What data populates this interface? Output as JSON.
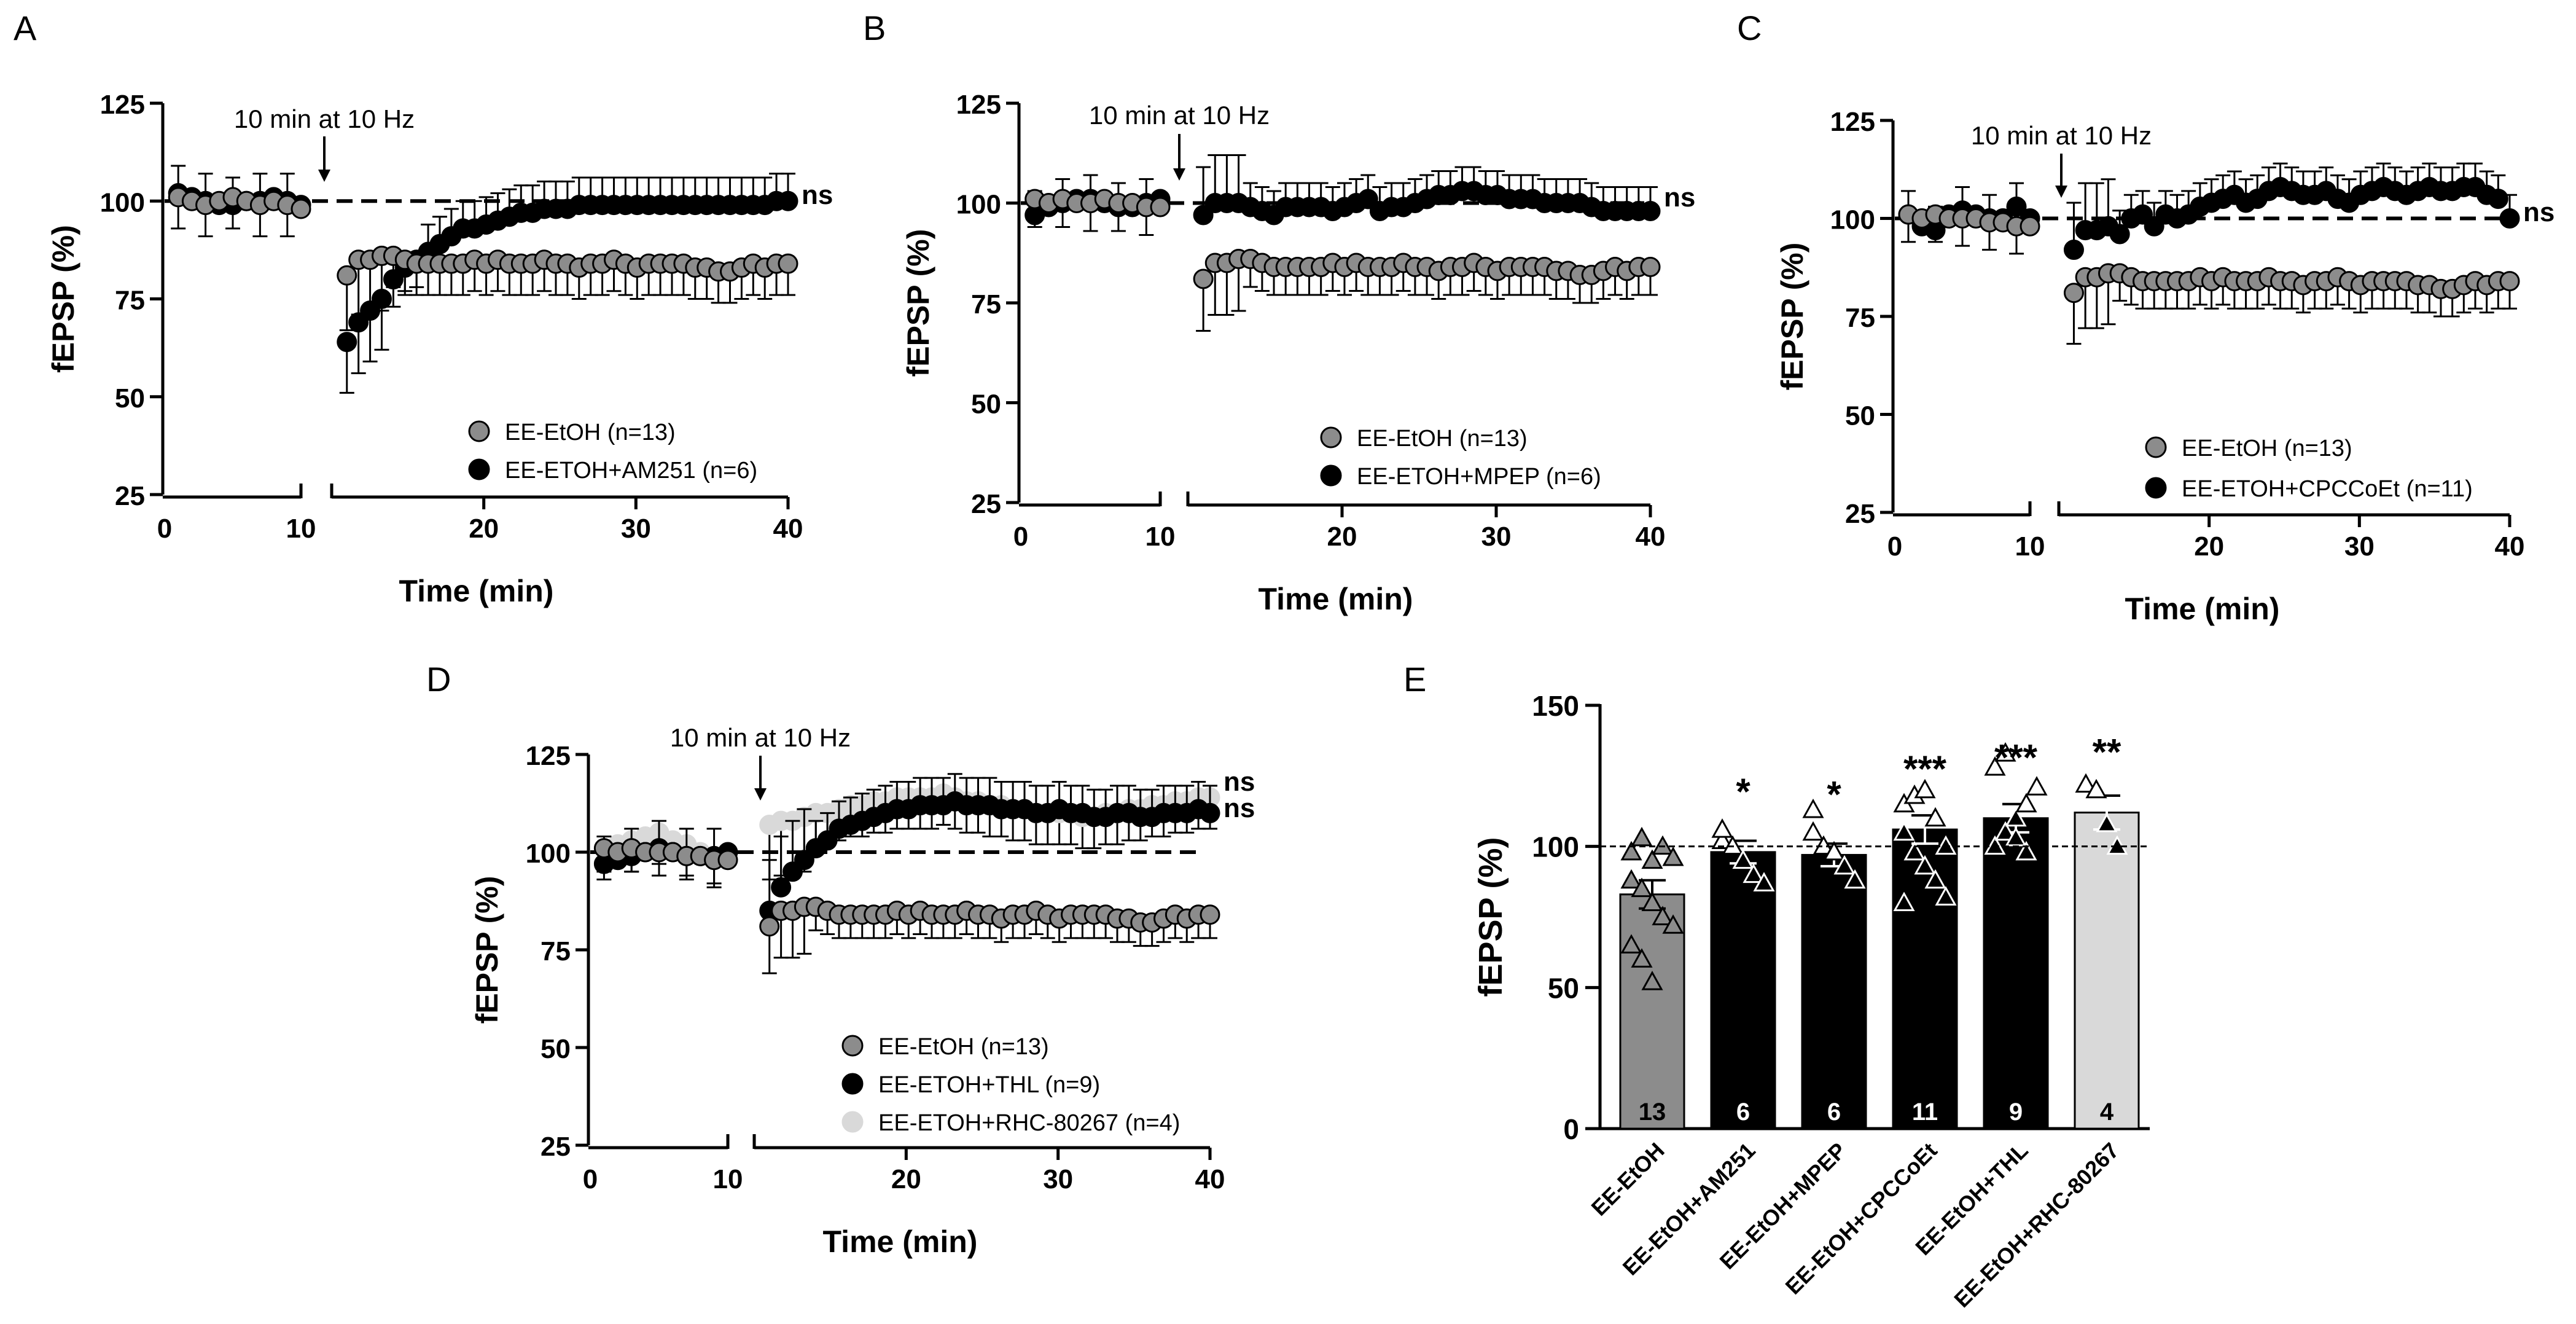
{
  "figure": {
    "colors": {
      "ethanol": "#8c8c8c",
      "black": "#000000",
      "light": "#d9d9d9"
    }
  },
  "chart_data": [
    {
      "panel": "A",
      "type": "scatter",
      "xlabel": "Time (min)",
      "ylabel": "fEPSP (%)",
      "xlim": [
        0,
        40
      ],
      "ylim": [
        25,
        125
      ],
      "xticks": [
        "0",
        "10",
        "20",
        "30",
        "40"
      ],
      "yticks": [
        "25",
        "50",
        "75",
        "100",
        "125"
      ],
      "annotation": "10 min at 10 Hz",
      "stim_x": 10,
      "sig_labels": [
        "ns"
      ],
      "reference_line": 100,
      "series": [
        {
          "name": "EE-EtOH (n=13)",
          "color": "#8c8c8c",
          "baseline": [
            101,
            100,
            99,
            100,
            101,
            100,
            99,
            100,
            99,
            98
          ],
          "post": [
            81,
            85,
            85,
            86,
            86,
            85,
            84,
            84,
            84,
            84,
            84,
            85,
            84,
            85,
            84,
            84,
            84,
            85,
            84,
            84,
            83,
            84,
            84,
            85,
            84,
            83,
            84,
            84,
            84,
            84,
            83,
            83,
            82,
            82,
            83,
            84,
            83,
            84,
            84
          ],
          "err": 8
        },
        {
          "name": "EE-ETOH+AM251 (n=6)",
          "color": "#000000",
          "baseline": [
            102,
            101,
            100,
            99,
            99,
            100,
            100,
            101,
            100,
            99
          ],
          "post": [
            64,
            69,
            72,
            75,
            80,
            83,
            85,
            87,
            89,
            91,
            93,
            93,
            94,
            95,
            96,
            97,
            97,
            98,
            98,
            98,
            99,
            99,
            99,
            99,
            99,
            99,
            99,
            99,
            99,
            99,
            99,
            99,
            99,
            99,
            99,
            99,
            99,
            100,
            100
          ],
          "err": 7
        }
      ]
    },
    {
      "panel": "B",
      "type": "scatter",
      "xlabel": "Time (min)",
      "ylabel": "fEPSP (%)",
      "xlim": [
        0,
        40
      ],
      "ylim": [
        25,
        125
      ],
      "xticks": [
        "0",
        "10",
        "20",
        "30",
        "40"
      ],
      "yticks": [
        "25",
        "50",
        "75",
        "100",
        "125"
      ],
      "annotation": "10 min at 10 Hz",
      "stim_x": 10,
      "sig_labels": [
        "ns"
      ],
      "reference_line": 100,
      "series": [
        {
          "name": "EE-EtOH (n=13)",
          "color": "#8c8c8c",
          "baseline": [
            101,
            100,
            101,
            100,
            100,
            101,
            100,
            100,
            99,
            99
          ],
          "post": [
            81,
            85,
            85,
            86,
            86,
            85,
            84,
            84,
            84,
            84,
            84,
            85,
            84,
            85,
            84,
            84,
            84,
            85,
            84,
            84,
            83,
            84,
            84,
            85,
            84,
            83,
            84,
            84,
            84,
            84,
            83,
            83,
            82,
            82,
            83,
            84,
            83,
            84,
            84
          ],
          "err": 7
        },
        {
          "name": "EE-ETOH+MPEP (n=6)",
          "color": "#000000",
          "baseline": [
            97,
            99,
            100,
            101,
            101,
            100,
            99,
            99,
            100,
            101
          ],
          "post": [
            97,
            100,
            100,
            100,
            99,
            98,
            97,
            99,
            99,
            99,
            99,
            98,
            99,
            100,
            101,
            98,
            99,
            99,
            100,
            101,
            102,
            102,
            103,
            103,
            102,
            102,
            101,
            101,
            101,
            100,
            100,
            100,
            100,
            99,
            98,
            98,
            98,
            98,
            98
          ],
          "err": 6
        }
      ]
    },
    {
      "panel": "C",
      "type": "scatter",
      "xlabel": "Time (min)",
      "ylabel": "fEPSP (%)",
      "xlim": [
        0,
        40
      ],
      "ylim": [
        25,
        125
      ],
      "xticks": [
        "0",
        "10",
        "20",
        "30",
        "40"
      ],
      "yticks": [
        "25",
        "50",
        "75",
        "100",
        "125"
      ],
      "annotation": "10 min at 10 Hz",
      "stim_x": 10,
      "sig_labels": [
        "ns"
      ],
      "reference_line": 100,
      "series": [
        {
          "name": "EE-EtOH (n=13)",
          "color": "#8c8c8c",
          "baseline": [
            101,
            100,
            101,
            100,
            100,
            100,
            99,
            99,
            98,
            98
          ],
          "post": [
            81,
            85,
            85,
            86,
            86,
            85,
            84,
            84,
            84,
            84,
            84,
            85,
            84,
            85,
            84,
            84,
            84,
            85,
            84,
            84,
            83,
            84,
            84,
            85,
            84,
            83,
            84,
            84,
            84,
            84,
            83,
            83,
            82,
            82,
            83,
            84,
            83,
            84,
            84
          ],
          "err": 7
        },
        {
          "name": "EE-ETOH+CPCCoEt (n=11)",
          "color": "#000000",
          "baseline": [
            101,
            98,
            97,
            101,
            102,
            101,
            100,
            100,
            103,
            100
          ],
          "post": [
            92,
            97,
            97,
            98,
            96,
            100,
            101,
            98,
            101,
            100,
            101,
            103,
            104,
            105,
            106,
            104,
            105,
            107,
            108,
            107,
            106,
            106,
            107,
            105,
            104,
            106,
            107,
            108,
            107,
            106,
            107,
            108,
            107,
            107,
            108,
            108,
            106,
            105,
            100
          ],
          "err": 6
        }
      ]
    },
    {
      "panel": "D",
      "type": "scatter",
      "xlabel": "Time (min)",
      "ylabel": "fEPSP (%)",
      "xlim": [
        0,
        40
      ],
      "ylim": [
        25,
        125
      ],
      "xticks": [
        "0",
        "10",
        "20",
        "30",
        "40"
      ],
      "yticks": [
        "25",
        "50",
        "75",
        "100",
        "125"
      ],
      "annotation": "10 min at 10 Hz",
      "stim_x": 10,
      "sig_labels": [
        "ns",
        "ns"
      ],
      "reference_line": 100,
      "series": [
        {
          "name": "EE-EtOH (n=13)",
          "color": "#8c8c8c",
          "baseline": [
            101,
            100,
            101,
            100,
            100,
            100,
            99,
            99,
            98,
            98
          ],
          "post": [
            81,
            85,
            85,
            86,
            86,
            85,
            84,
            84,
            84,
            84,
            84,
            85,
            84,
            85,
            84,
            84,
            84,
            85,
            84,
            84,
            83,
            84,
            84,
            85,
            84,
            83,
            84,
            84,
            84,
            84,
            83,
            83,
            82,
            82,
            83,
            84,
            83,
            84,
            84
          ],
          "err": 6
        },
        {
          "name": "EE-ETOH+THL (n=9)",
          "color": "#000000",
          "baseline": [
            97,
            98,
            99,
            100,
            101,
            100,
            99,
            99,
            99,
            100
          ],
          "post": [
            85,
            91,
            95,
            98,
            101,
            103,
            106,
            107,
            108,
            109,
            110,
            111,
            111,
            112,
            112,
            112,
            113,
            112,
            112,
            112,
            111,
            111,
            111,
            110,
            110,
            111,
            110,
            110,
            109,
            109,
            110,
            110,
            109,
            109,
            110,
            110,
            110,
            111,
            110
          ],
          "err": 7
        },
        {
          "name": "EE-ETOH+RHC-80267 (n=4)",
          "color": "#d9d9d9",
          "baseline": [
            101,
            102,
            103,
            104,
            105,
            103,
            102,
            100,
            99,
            98
          ],
          "post": [
            107,
            108,
            108,
            109,
            110,
            110,
            111,
            112,
            112,
            113,
            113,
            114,
            114,
            114,
            114,
            115,
            114,
            113,
            113,
            112,
            112,
            111,
            111,
            110,
            110,
            110,
            110,
            109,
            109,
            110,
            110,
            111,
            111,
            112,
            112,
            113,
            113,
            114,
            114
          ],
          "err": 8
        }
      ]
    },
    {
      "panel": "E",
      "type": "bar",
      "ylabel": "fEPSP (%)",
      "ylim": [
        0,
        150
      ],
      "yticks": [
        "0",
        "50",
        "100",
        "150"
      ],
      "reference_line": 100,
      "categories": [
        "EE-EtOH",
        "EE-EtOH+AM251",
        "EE-EtOH+MPEP",
        "EE-EtOH+CPCCoEt",
        "EE-EtOH+THL",
        "EE-EtOH+RHC-80267"
      ],
      "values": [
        83,
        98,
        97,
        106,
        110,
        112
      ],
      "sem": [
        5,
        4,
        4,
        5,
        5,
        6
      ],
      "n_labels": [
        "13",
        "6",
        "6",
        "11",
        "9",
        "4"
      ],
      "significance": [
        "",
        "*",
        "*",
        "***",
        "***",
        "**"
      ],
      "bar_colors": [
        "#8c8c8c",
        "#000000",
        "#000000",
        "#000000",
        "#000000",
        "#d9d9d9"
      ],
      "points": [
        [
          98,
          103,
          95,
          100,
          96,
          88,
          85,
          80,
          75,
          72,
          65,
          60,
          52
        ],
        [
          102,
          100,
          95,
          90,
          87,
          106
        ],
        [
          105,
          100,
          98,
          93,
          88,
          113
        ],
        [
          105,
          98,
          93,
          88,
          82,
          115,
          118,
          120,
          110,
          100,
          80
        ],
        [
          100,
          105,
          110,
          115,
          121,
          128,
          133,
          103,
          98
        ],
        [
          122,
          120,
          108,
          100
        ]
      ]
    }
  ]
}
